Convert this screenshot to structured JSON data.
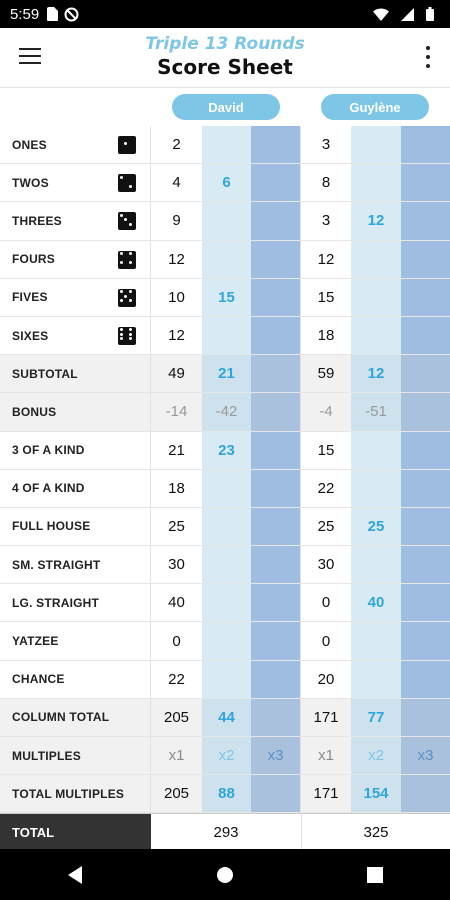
{
  "status_bar": {
    "time": "5:59",
    "icons": [
      "sim-card-icon",
      "no-sync-icon",
      "wifi-icon",
      "signal-icon",
      "battery-icon"
    ]
  },
  "header": {
    "subtitle": "Triple 13 Rounds",
    "title": "Score Sheet",
    "menu_icon": "hamburger-menu-icon",
    "overflow_icon": "more-vert-icon"
  },
  "players": [
    {
      "name": "David"
    },
    {
      "name": "Guylène"
    }
  ],
  "rows": [
    {
      "label": "ONES",
      "die": 1,
      "david": [
        "2",
        "",
        ""
      ],
      "guylene": [
        "3",
        "",
        ""
      ]
    },
    {
      "label": "TWOS",
      "die": 2,
      "david": [
        "4",
        "6",
        ""
      ],
      "guylene": [
        "8",
        "",
        ""
      ]
    },
    {
      "label": "THREES",
      "die": 3,
      "david": [
        "9",
        "",
        ""
      ],
      "guylene": [
        "3",
        "12",
        ""
      ]
    },
    {
      "label": "FOURS",
      "die": 4,
      "david": [
        "12",
        "",
        ""
      ],
      "guylene": [
        "12",
        "",
        ""
      ]
    },
    {
      "label": "FIVES",
      "die": 5,
      "david": [
        "10",
        "15",
        ""
      ],
      "guylene": [
        "15",
        "",
        ""
      ]
    },
    {
      "label": "SIXES",
      "die": 6,
      "david": [
        "12",
        "",
        ""
      ],
      "guylene": [
        "18",
        "",
        ""
      ]
    },
    {
      "label": "SUBTOTAL",
      "shade": true,
      "david": [
        "49",
        "21",
        ""
      ],
      "guylene": [
        "59",
        "12",
        ""
      ]
    },
    {
      "label": "BONUS",
      "shade": true,
      "grey": true,
      "david": [
        "-14",
        "-42",
        ""
      ],
      "guylene": [
        "-4",
        "-51",
        ""
      ]
    },
    {
      "label": "3 OF A KIND",
      "david": [
        "21",
        "23",
        ""
      ],
      "guylene": [
        "15",
        "",
        ""
      ]
    },
    {
      "label": "4 OF A KIND",
      "david": [
        "18",
        "",
        ""
      ],
      "guylene": [
        "22",
        "",
        ""
      ]
    },
    {
      "label": "FULL HOUSE",
      "david": [
        "25",
        "",
        ""
      ],
      "guylene": [
        "25",
        "25",
        ""
      ]
    },
    {
      "label": "SM. STRAIGHT",
      "david": [
        "30",
        "",
        ""
      ],
      "guylene": [
        "30",
        "",
        ""
      ]
    },
    {
      "label": "LG. STRAIGHT",
      "david": [
        "40",
        "",
        ""
      ],
      "guylene": [
        "0",
        "40",
        ""
      ]
    },
    {
      "label": "YATZEE",
      "david": [
        "0",
        "",
        ""
      ],
      "guylene": [
        "0",
        "",
        ""
      ]
    },
    {
      "label": "CHANCE",
      "david": [
        "22",
        "",
        ""
      ],
      "guylene": [
        "20",
        "",
        ""
      ]
    },
    {
      "label": "COLUMN TOTAL",
      "shade": true,
      "david": [
        "205",
        "44",
        ""
      ],
      "guylene": [
        "171",
        "77",
        ""
      ]
    },
    {
      "label": "MULTIPLES",
      "shade": true,
      "multi": true,
      "david": [
        "x1",
        "x2",
        "x3"
      ],
      "guylene": [
        "x1",
        "x2",
        "x3"
      ]
    },
    {
      "label": "TOTAL MULTIPLES",
      "shade": true,
      "david": [
        "205",
        "88",
        ""
      ],
      "guylene": [
        "171",
        "154",
        ""
      ]
    }
  ],
  "total": {
    "label": "TOTAL",
    "david": "293",
    "guylene": "325"
  },
  "nav": {
    "icons": [
      "back-icon",
      "home-icon",
      "recents-icon"
    ]
  }
}
